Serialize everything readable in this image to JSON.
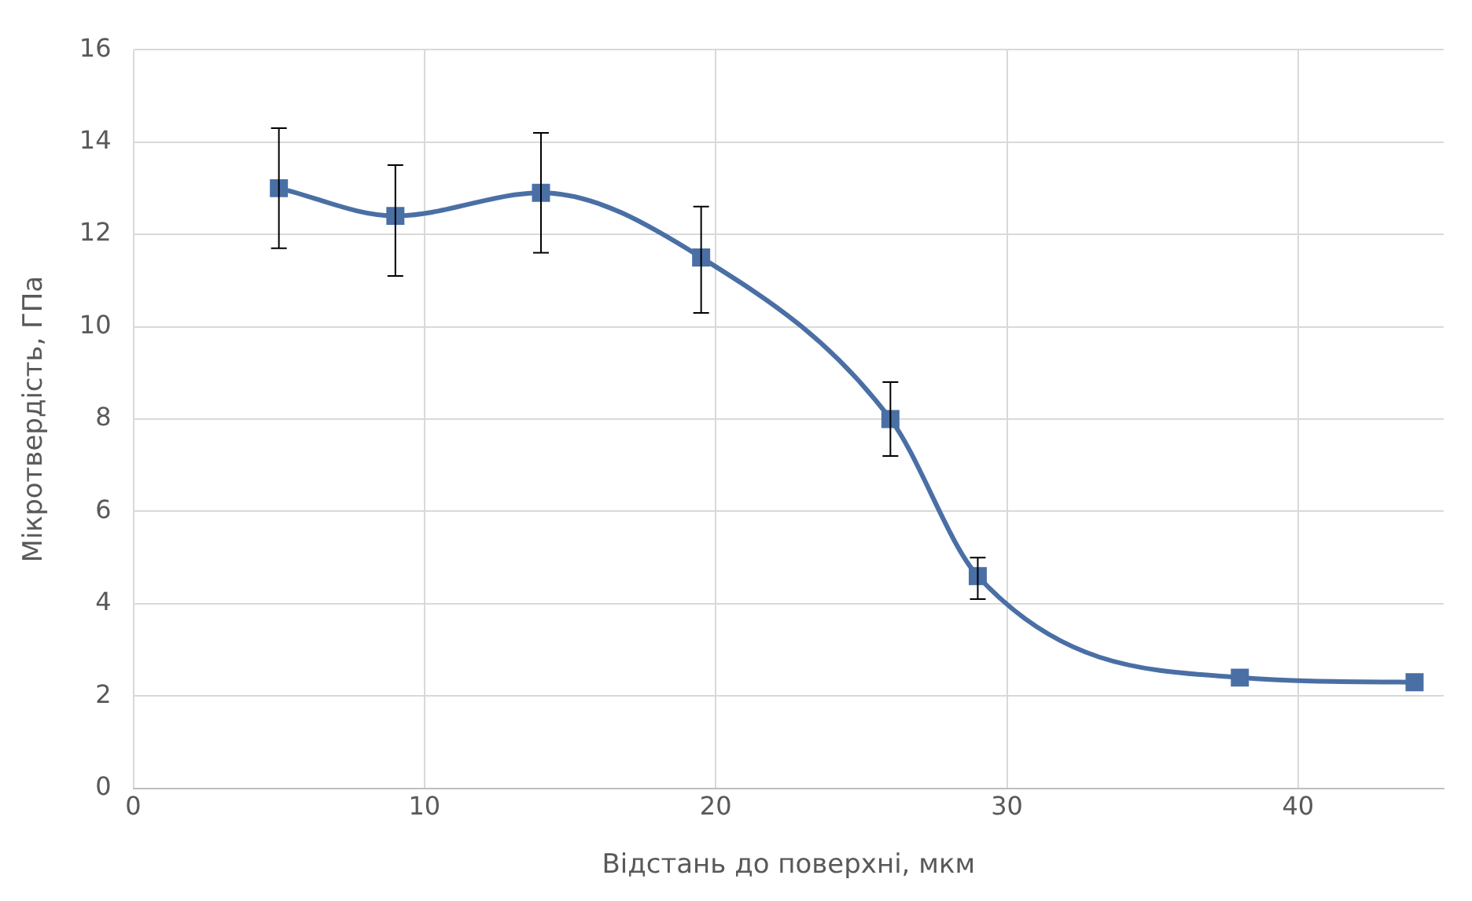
{
  "chart_data": {
    "type": "line",
    "xlabel": "Відстань до поверхні, мкм",
    "ylabel": "Мікротвердість, ГПа",
    "x": [
      5,
      9,
      14,
      19.5,
      26,
      29,
      38,
      44
    ],
    "series": [
      {
        "color": "#4a6fa5",
        "values": [
          13.0,
          12.4,
          12.9,
          11.5,
          8.0,
          4.6,
          2.4,
          2.3
        ],
        "errors": [
          [
            11.7,
            14.3
          ],
          [
            11.1,
            13.5
          ],
          [
            11.6,
            14.2
          ],
          [
            10.3,
            12.6
          ],
          [
            7.2,
            8.8
          ],
          [
            4.1,
            5.0
          ],
          null,
          null
        ]
      }
    ],
    "xlim": [
      0,
      45
    ],
    "xticks": [
      0,
      10,
      20,
      30,
      40
    ],
    "ylim": [
      0,
      16
    ],
    "yticks": [
      0,
      2,
      4,
      6,
      8,
      10,
      12,
      14,
      16
    ],
    "grid": true,
    "legend": false,
    "marker": "square",
    "line_style": "solid"
  }
}
